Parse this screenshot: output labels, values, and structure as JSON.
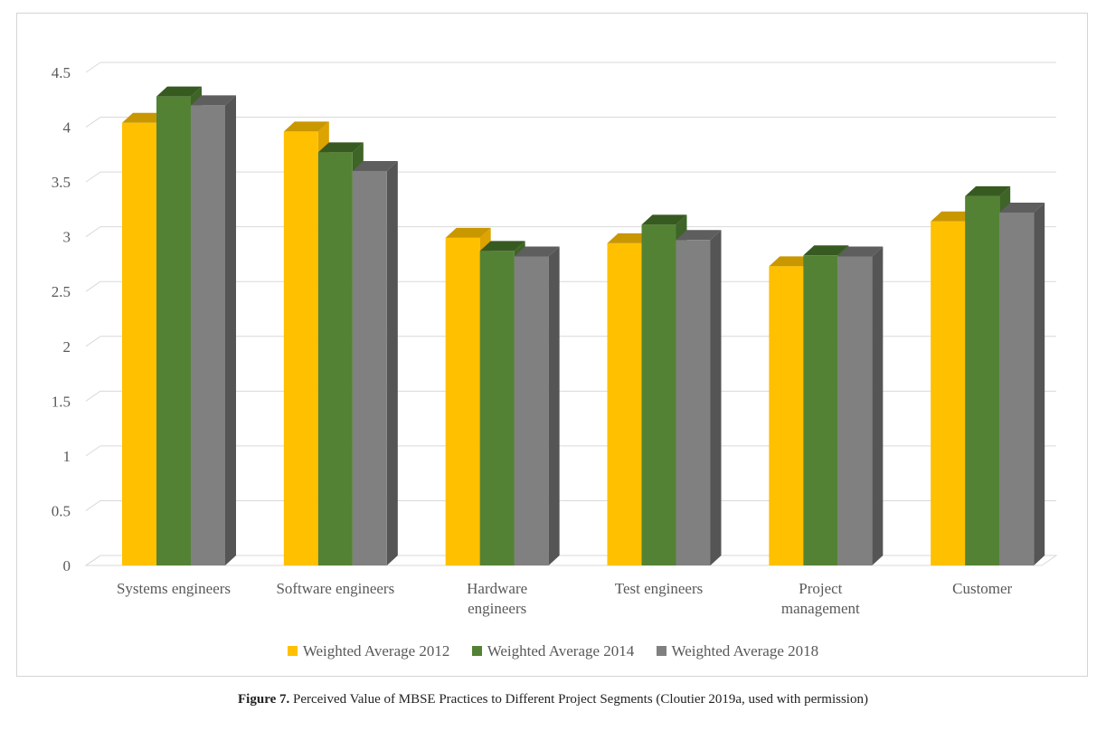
{
  "colors": {
    "series": [
      "#FFC000",
      "#548235",
      "#808080"
    ],
    "tops": [
      "#C99700",
      "#375A21",
      "#5E5E5E"
    ],
    "sides": [
      "#DDA300",
      "#3E6427",
      "#555555"
    ],
    "grid": "#D9D9D9",
    "text": "#595959"
  },
  "chart_data": {
    "type": "bar",
    "categories": [
      [
        "Systems engineers"
      ],
      [
        "Software engineers"
      ],
      [
        "Hardware",
        "engineers"
      ],
      [
        "Test engineers"
      ],
      [
        "Project",
        "management"
      ],
      [
        "Customer"
      ]
    ],
    "series": [
      {
        "name": "Weighted Average 2012",
        "values": [
          4.04,
          3.96,
          2.99,
          2.94,
          2.73,
          3.14
        ]
      },
      {
        "name": "Weighted Average 2014",
        "values": [
          4.28,
          3.77,
          2.87,
          3.11,
          2.83,
          3.37
        ]
      },
      {
        "name": "Weighted Average 2018",
        "values": [
          4.2,
          3.6,
          2.82,
          2.97,
          2.82,
          3.22
        ]
      }
    ],
    "ylim": [
      0,
      4.5
    ],
    "yticks": [
      "0",
      "0.5",
      "1",
      "1.5",
      "2",
      "2.5",
      "3",
      "3.5",
      "4",
      "4.5"
    ],
    "grid": true,
    "legend_position": "bottom",
    "style": "3d-clustered-column"
  },
  "caption": {
    "label": "Figure 7.",
    "text": " Perceived Value of MBSE Practices to Different Project Segments (Cloutier 2019a, used with permission)"
  }
}
